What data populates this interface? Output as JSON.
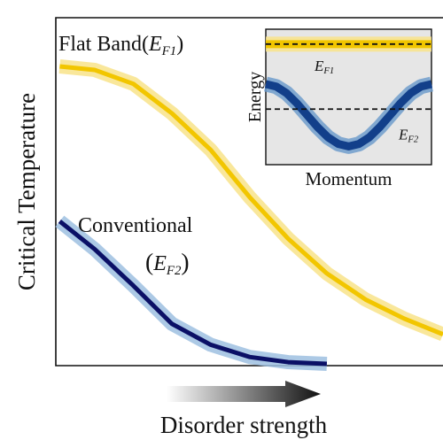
{
  "chart_data": [
    {
      "type": "line",
      "xlabel": "Disorder strength",
      "ylabel": "Critical Temperature",
      "xlim": [
        0,
        10
      ],
      "ylim": [
        0,
        10
      ],
      "series": [
        {
          "name": "Flat Band",
          "color": "#f2c600",
          "band_color": "#f8e38a",
          "label": {
            "open": "(",
            "symbol": "E",
            "subscript": "F1",
            "close": ")"
          },
          "x": [
            0.1,
            1,
            2,
            3,
            4,
            5,
            6,
            7,
            8,
            9,
            10
          ],
          "values": [
            8.6,
            8.5,
            8.1,
            7.25,
            6.2,
            4.85,
            3.65,
            2.65,
            1.9,
            1.35,
            0.9
          ]
        },
        {
          "name": "Conventional",
          "color": "#0b1066",
          "band_color": "#9dbfe0",
          "label": {
            "open": "(",
            "symbol": "E",
            "subscript": "F2",
            "close": ")"
          },
          "x": [
            0.1,
            1,
            2,
            3,
            4,
            5,
            6,
            7
          ],
          "values": [
            4.15,
            3.35,
            2.3,
            1.2,
            0.6,
            0.25,
            0.1,
            0.05
          ]
        }
      ]
    },
    {
      "type": "band-diagram",
      "xlabel": "Momentum",
      "ylabel": "Energy",
      "xlim": [
        -1,
        1
      ],
      "ylim": [
        0,
        10
      ],
      "series": [
        {
          "color": "#f2c600",
          "band_color": "#f8e38a",
          "x": [
            -1,
            1
          ],
          "values": [
            8.9,
            8.9
          ]
        },
        {
          "color": "#123f8a",
          "band_color": "#6f9ccb",
          "x": [
            -1,
            -0.875,
            -0.75,
            -0.625,
            -0.5,
            -0.375,
            -0.25,
            -0.125,
            0,
            0.125,
            0.25,
            0.375,
            0.5,
            0.625,
            0.75,
            0.875,
            1
          ],
          "values": [
            5.95,
            5.77,
            5.28,
            4.53,
            3.65,
            2.77,
            2.02,
            1.53,
            1.35,
            1.53,
            2.02,
            2.77,
            3.65,
            4.53,
            5.28,
            5.77,
            5.95
          ]
        }
      ],
      "hlines": [
        {
          "value": 8.9,
          "symbol": "E",
          "subscript": "F1"
        },
        {
          "value": 4.1,
          "symbol": "E",
          "subscript": "F2"
        }
      ]
    }
  ]
}
